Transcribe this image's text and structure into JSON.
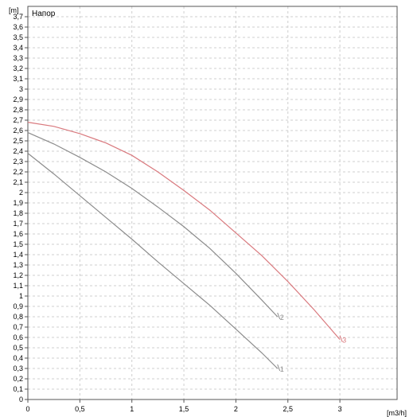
{
  "chart_data": {
    "type": "line",
    "title": "Напор",
    "ylabel": "[m]",
    "xlabel": "[m3/h]",
    "xlim": [
      0,
      3.55
    ],
    "ylim": [
      0,
      3.8
    ],
    "x_ticks": [
      "0",
      "0,5",
      "1",
      "1,5",
      "2",
      "2,5",
      "3"
    ],
    "x_tick_values": [
      0,
      0.5,
      1,
      1.5,
      2,
      2.5,
      3
    ],
    "y_ticks": [
      "0",
      "0,1",
      "0,2",
      "0,3",
      "0,4",
      "0,5",
      "0,6",
      "0,7",
      "0,8",
      "0,9",
      "1",
      "1,1",
      "1,2",
      "1,3",
      "1,4",
      "1,5",
      "1,6",
      "1,7",
      "1,8",
      "1,9",
      "2",
      "2,1",
      "2,2",
      "2,3",
      "2,4",
      "2,5",
      "2,6",
      "2,7",
      "2,8",
      "2,9",
      "3",
      "3,1",
      "3,2",
      "3,3",
      "3,4",
      "3,5",
      "3,6",
      "3,7"
    ],
    "grid": true,
    "series": [
      {
        "name": "1",
        "color": "#8c8c8c",
        "x": [
          0,
          0.25,
          0.5,
          0.75,
          1,
          1.25,
          1.5,
          1.75,
          2,
          2.25,
          2.4
        ],
        "y": [
          2.38,
          2.18,
          1.97,
          1.76,
          1.55,
          1.33,
          1.12,
          0.91,
          0.68,
          0.45,
          0.3
        ]
      },
      {
        "name": "2",
        "color": "#8c8c8c",
        "x": [
          0,
          0.25,
          0.5,
          0.75,
          1,
          1.25,
          1.5,
          1.75,
          2,
          2.25,
          2.4
        ],
        "y": [
          2.58,
          2.47,
          2.34,
          2.2,
          2.04,
          1.86,
          1.67,
          1.46,
          1.22,
          0.96,
          0.8
        ]
      },
      {
        "name": "3",
        "color": "#d9797e",
        "x": [
          0,
          0.25,
          0.5,
          0.75,
          1,
          1.25,
          1.5,
          1.75,
          2,
          2.25,
          2.5,
          2.75,
          3
        ],
        "y": [
          2.68,
          2.64,
          2.57,
          2.48,
          2.36,
          2.2,
          2.02,
          1.83,
          1.61,
          1.39,
          1.14,
          0.87,
          0.58
        ]
      }
    ]
  }
}
